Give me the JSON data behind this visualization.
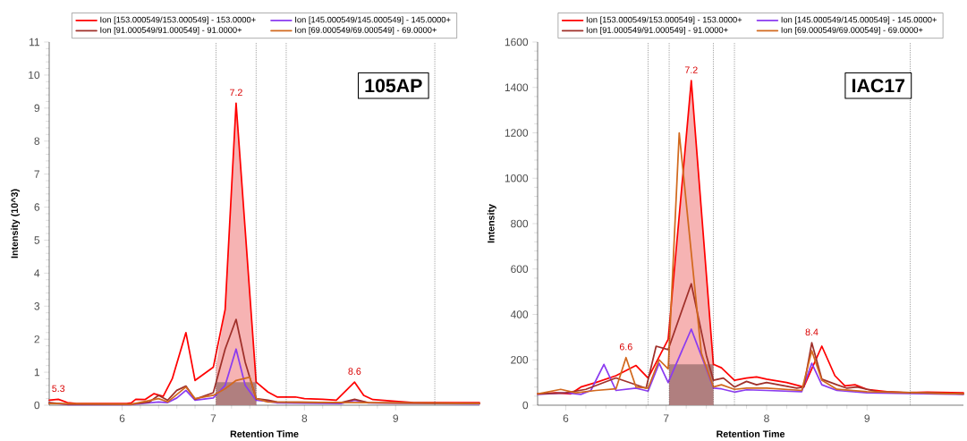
{
  "chart_data": [
    {
      "type": "line",
      "xlabel": "Retention Time",
      "ylabel": "Intensity (10^3)",
      "xlim": [
        5.2,
        9.92
      ],
      "ylim": [
        0,
        11
      ],
      "xticks": [
        6,
        7,
        8,
        9
      ],
      "yticks": [
        0,
        1,
        2,
        3,
        4,
        5,
        6,
        7,
        8,
        9,
        10,
        11
      ],
      "legend": "top",
      "grid": false,
      "marker": "none",
      "series": [
        {
          "name": "Ion [153.000549/153.000549] - 153.0000+",
          "color": "#ff0000",
          "x": [
            5.2,
            5.3,
            5.4,
            5.5,
            6.05,
            6.1,
            6.15,
            6.25,
            6.35,
            6.45,
            6.55,
            6.7,
            6.8,
            7.0,
            7.13,
            7.25,
            7.47,
            7.6,
            7.7,
            7.9,
            8.0,
            8.2,
            8.35,
            8.55,
            8.65,
            8.75,
            9.0,
            9.2,
            9.92
          ],
          "values": [
            0.15,
            0.18,
            0.08,
            0.05,
            0.05,
            0.07,
            0.18,
            0.17,
            0.35,
            0.27,
            0.8,
            2.2,
            0.75,
            1.15,
            2.9,
            9.15,
            0.7,
            0.4,
            0.25,
            0.25,
            0.2,
            0.18,
            0.15,
            0.7,
            0.3,
            0.17,
            0.12,
            0.08,
            0.08
          ]
        },
        {
          "name": "Ion [145.000549/145.000549] - 145.0000+",
          "color": "#8b3cf0",
          "x": [
            5.2,
            5.4,
            6.1,
            6.4,
            6.5,
            6.6,
            6.7,
            6.8,
            7.0,
            7.13,
            7.25,
            7.35,
            7.47,
            7.6,
            7.7,
            8.4,
            8.55,
            8.7,
            9.92
          ],
          "values": [
            0.07,
            0.02,
            0.02,
            0.1,
            0.08,
            0.22,
            0.45,
            0.15,
            0.22,
            0.6,
            1.7,
            0.6,
            0.15,
            0.12,
            0.07,
            0.05,
            0.15,
            0.07,
            0.04
          ]
        },
        {
          "name": "Ion [91.000549/91.000549] - 91.0000+",
          "color": "#a0302a",
          "x": [
            5.2,
            5.4,
            6.1,
            6.3,
            6.4,
            6.5,
            6.6,
            6.7,
            6.8,
            7.0,
            7.13,
            7.25,
            7.35,
            7.47,
            7.6,
            7.7,
            8.4,
            8.55,
            8.7,
            9.92
          ],
          "values": [
            0.08,
            0.03,
            0.03,
            0.1,
            0.3,
            0.15,
            0.45,
            0.58,
            0.18,
            0.38,
            1.7,
            2.6,
            1.3,
            0.2,
            0.15,
            0.1,
            0.08,
            0.18,
            0.08,
            0.05
          ]
        },
        {
          "name": "Ion [69.000549/69.000549] - 69.0000+",
          "color": "#d2691e",
          "x": [
            5.2,
            6.1,
            6.4,
            6.5,
            6.7,
            6.8,
            7.0,
            7.13,
            7.25,
            7.4,
            7.47,
            7.6,
            9.92
          ],
          "values": [
            0.05,
            0.03,
            0.2,
            0.1,
            0.55,
            0.2,
            0.3,
            0.5,
            0.75,
            0.85,
            0.2,
            0.1,
            0.05
          ]
        },
        {
          "type": "area",
          "color": "#f6b3b3",
          "x": [
            7.03,
            7.13,
            7.25,
            7.47
          ],
          "values": [
            1.2,
            2.9,
            9.15,
            0.7
          ]
        },
        {
          "type": "area",
          "color": "#b07f7f",
          "x": [
            7.03,
            7.47
          ],
          "values": [
            0.7,
            0.7
          ]
        }
      ],
      "ref_lines": [
        {
          "axis": "x",
          "value": 7.03,
          "line_style": "dotted"
        },
        {
          "axis": "x",
          "value": 7.47,
          "line_style": "dotted"
        },
        {
          "axis": "x",
          "value": 7.8,
          "line_style": "dotted"
        },
        {
          "axis": "x",
          "value": 9.43,
          "line_style": "dotted"
        }
      ],
      "annotations": [
        "105AP",
        {
          "text": "7.2",
          "x": 7.25,
          "y": 9.15
        },
        {
          "text": "5.3",
          "x": 5.3,
          "y": 0.18
        },
        {
          "text": "8.6",
          "x": 8.55,
          "y": 0.7
        }
      ]
    },
    {
      "type": "line",
      "xlabel": "Retention Time",
      "ylabel": "Intensity",
      "xlim": [
        5.72,
        9.96
      ],
      "ylim": [
        0,
        1600
      ],
      "xticks": [
        6,
        7,
        8,
        9
      ],
      "yticks": [
        0,
        200,
        400,
        600,
        800,
        1000,
        1200,
        1400,
        1600
      ],
      "legend": "top",
      "grid": false,
      "marker": "none",
      "series": [
        {
          "name": "Ion [153.000549/153.000549] - 153.0000+",
          "color": "#ff0000",
          "x": [
            5.72,
            5.9,
            6.05,
            6.15,
            6.3,
            6.5,
            6.7,
            6.82,
            7.02,
            7.25,
            7.47,
            7.55,
            7.68,
            7.8,
            7.9,
            8.0,
            8.2,
            8.37,
            8.55,
            8.68,
            8.78,
            8.88,
            9.0,
            9.2,
            9.4,
            9.6,
            9.96
          ],
          "values": [
            50,
            55,
            50,
            80,
            100,
            130,
            175,
            120,
            290,
            1430,
            180,
            165,
            110,
            120,
            125,
            115,
            100,
            80,
            260,
            130,
            85,
            90,
            70,
            60,
            55,
            58,
            55
          ]
        },
        {
          "name": "Ion [145.000549/145.000549] - 145.0000+",
          "color": "#8b3cf0",
          "x": [
            5.72,
            6.0,
            6.15,
            6.25,
            6.38,
            6.5,
            6.7,
            6.82,
            6.93,
            7.02,
            7.25,
            7.4,
            7.47,
            7.55,
            7.68,
            7.8,
            8.0,
            8.35,
            8.45,
            8.55,
            8.7,
            9.0,
            9.96
          ],
          "values": [
            48,
            55,
            48,
            65,
            180,
            65,
            75,
            62,
            185,
            100,
            335,
            160,
            75,
            72,
            58,
            68,
            65,
            60,
            185,
            90,
            65,
            55,
            48
          ]
        },
        {
          "name": "Ion [91.000549/91.000549] - 91.0000+",
          "color": "#a0302a",
          "x": [
            5.72,
            6.0,
            6.2,
            6.5,
            6.8,
            6.9,
            7.02,
            7.25,
            7.4,
            7.47,
            7.57,
            7.68,
            7.8,
            7.9,
            8.0,
            8.3,
            8.37,
            8.45,
            8.55,
            8.7,
            8.8,
            8.9,
            9.1,
            9.96
          ],
          "values": [
            50,
            55,
            70,
            120,
            75,
            260,
            245,
            535,
            220,
            110,
            120,
            80,
            105,
            90,
            100,
            75,
            80,
            275,
            115,
            90,
            75,
            80,
            60,
            50
          ]
        },
        {
          "name": "Ion [69.000549/69.000549] - 69.0000+",
          "color": "#d2691e",
          "x": [
            5.72,
            5.95,
            6.1,
            6.3,
            6.5,
            6.6,
            6.7,
            6.82,
            6.93,
            7.02,
            7.13,
            7.35,
            7.47,
            7.55,
            7.68,
            7.8,
            8.0,
            8.35,
            8.45,
            8.55,
            8.7,
            9.0,
            9.96
          ],
          "values": [
            50,
            70,
            55,
            65,
            72,
            210,
            80,
            75,
            200,
            160,
            1200,
            230,
            80,
            90,
            70,
            75,
            75,
            65,
            240,
            110,
            70,
            60,
            50
          ]
        },
        {
          "type": "area",
          "color": "#f6b3b3",
          "x": [
            7.03,
            7.25,
            7.47
          ],
          "values": [
            300,
            1430,
            180
          ]
        },
        {
          "type": "area",
          "color": "#b07f7f",
          "x": [
            7.03,
            7.47
          ],
          "values": [
            180,
            180
          ]
        }
      ],
      "ref_lines": [
        {
          "axis": "x",
          "value": 6.82,
          "line_style": "dotted"
        },
        {
          "axis": "x",
          "value": 7.03,
          "line_style": "dotted"
        },
        {
          "axis": "x",
          "value": 7.47,
          "line_style": "dotted"
        },
        {
          "axis": "x",
          "value": 7.68,
          "line_style": "dotted"
        },
        {
          "axis": "x",
          "value": 9.43,
          "line_style": "dotted"
        }
      ],
      "annotations": [
        "IAC17",
        {
          "text": "7.2",
          "x": 7.25,
          "y": 1430
        },
        {
          "text": "6.6",
          "x": 6.6,
          "y": 210
        },
        {
          "text": "8.4",
          "x": 8.45,
          "y": 275
        }
      ]
    }
  ]
}
